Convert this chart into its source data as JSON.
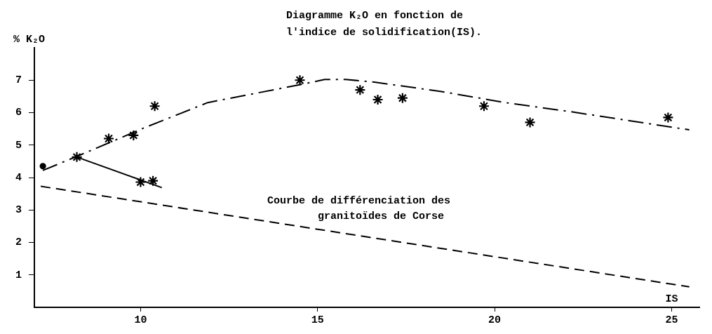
{
  "chart_data": {
    "type": "scatter",
    "title": "Diagramme K₂O en fonction de\nl'indice de solidification(IS).",
    "xlabel": "IS",
    "ylabel": "% K₂O",
    "xlim": [
      7,
      25.8
    ],
    "xticks": [
      10,
      15,
      20,
      25
    ],
    "ylim": [
      0,
      8
    ],
    "yticks": [
      1,
      2,
      3,
      4,
      5,
      6,
      7
    ],
    "grid": false,
    "legend": false,
    "series": [
      {
        "marker": "cross",
        "color": "#000000",
        "x": [
          9.1,
          9.8,
          10.4,
          14.5,
          16.2,
          16.7,
          17.4,
          19.7,
          21.0,
          24.9
        ],
        "values": [
          5.2,
          5.3,
          6.2,
          7.0,
          6.7,
          6.4,
          6.45,
          6.2,
          5.7,
          5.85
        ]
      },
      {
        "marker": "cross",
        "color": "#000000",
        "x": [
          8.2,
          10.0,
          10.35
        ],
        "values": [
          4.63,
          3.86,
          3.9
        ]
      },
      {
        "marker": "circle",
        "color": "#000000",
        "x": [
          7.24
        ],
        "values": [
          4.35
        ]
      },
      {
        "type": "line",
        "line_style": "solid",
        "color": "#000000",
        "x": [
          8.2,
          10.6
        ],
        "values": [
          4.63,
          3.69
        ]
      },
      {
        "type": "line",
        "line_style": "dashdot",
        "color": "#000000",
        "x": [
          7.24,
          8.2,
          10.1,
          11.9,
          14.5,
          15.2,
          15.8,
          16.6,
          18.5,
          20.3,
          22.2,
          25.5
        ],
        "values": [
          4.22,
          4.65,
          5.53,
          6.31,
          6.86,
          7.02,
          7.02,
          6.94,
          6.65,
          6.31,
          6.02,
          5.47
        ]
      },
      {
        "type": "line",
        "line_style": "dashed",
        "color": "#000000",
        "x": [
          7.18,
          25.5
        ],
        "values": [
          3.73,
          0.63
        ]
      }
    ],
    "annotations": [
      "Courbe de différenciation des\n        granitoïdes de Corse"
    ]
  }
}
